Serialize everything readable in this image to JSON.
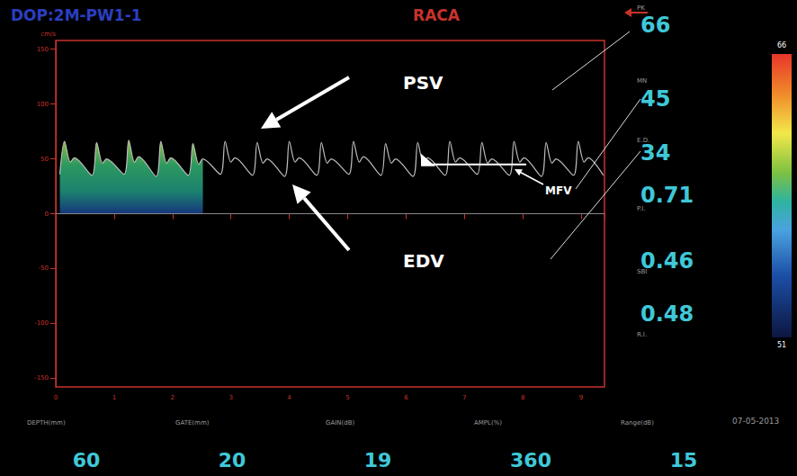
{
  "chart_data": {
    "type": "line",
    "title": "DOP:2M-PW1-1",
    "subtitle": "RACA",
    "y_label": "cm/s",
    "color": "#bdbdbd",
    "grid": false,
    "x": [
      0.07,
      0.15,
      0.25,
      0.32,
      0.62,
      0.7,
      0.8,
      0.87,
      1.17,
      1.25,
      1.35,
      1.42,
      1.72,
      1.8,
      1.9,
      1.97,
      2.27,
      2.35,
      2.45,
      2.52,
      2.82,
      2.9,
      3.0,
      3.07,
      3.37,
      3.45,
      3.55,
      3.62,
      3.92,
      4.0,
      4.1,
      4.17,
      4.47,
      4.55,
      4.65,
      4.72,
      5.02,
      5.1,
      5.2,
      5.27,
      5.57,
      5.65,
      5.75,
      5.82,
      6.12,
      6.2,
      6.3,
      6.37,
      6.67,
      6.75,
      6.85,
      6.92,
      7.22,
      7.3,
      7.4,
      7.47,
      7.77,
      7.85,
      7.95,
      8.02,
      8.32,
      8.4,
      8.5,
      8.57,
      8.87,
      8.95,
      9.05,
      9.12,
      9.38
    ],
    "values": [
      36,
      66,
      47,
      51,
      35,
      65,
      46,
      50,
      36,
      67,
      47,
      52,
      34,
      66,
      46,
      51,
      35,
      64,
      45,
      50,
      36,
      66,
      47,
      51,
      35,
      65,
      46,
      50,
      34,
      66,
      47,
      51,
      35,
      65,
      46,
      50,
      36,
      66,
      47,
      52,
      35,
      64,
      46,
      50,
      34,
      65,
      46,
      51,
      35,
      66,
      47,
      51,
      36,
      65,
      46,
      50,
      35,
      66,
      47,
      51,
      34,
      65,
      46,
      50,
      35,
      66,
      47,
      51,
      35
    ],
    "xlim": [
      0,
      9.4
    ],
    "xticks": [
      0,
      1,
      2,
      3,
      4,
      5,
      6,
      7,
      8,
      9
    ],
    "ylim": [
      -158,
      158
    ],
    "yticks": [
      -150,
      -100,
      -50,
      0,
      50,
      100,
      150
    ],
    "spectrum_xlim": [
      0,
      2.55
    ],
    "annotations": [
      "PSV",
      "EDV",
      "MFV"
    ],
    "measurements": [
      {
        "name": "PK",
        "value": 66
      },
      {
        "name": "MN",
        "value": 45
      },
      {
        "name": "E.D.",
        "value": 34
      },
      {
        "name": "P.I.",
        "value": 0.71
      },
      {
        "name": "SBI",
        "value": 0.46
      },
      {
        "name": "R.I.",
        "value": 0.48
      }
    ],
    "parameters": [
      {
        "name": "DEPTH(mm)",
        "value": 60
      },
      {
        "name": "GATE(mm)",
        "value": 20
      },
      {
        "name": "GAIN(dB)",
        "value": 19
      },
      {
        "name": "AMPL(%)",
        "value": 360
      },
      {
        "name": "Range(dB)",
        "value": 15
      }
    ],
    "date": "07-05-2013",
    "colorbar_ticks": [
      51,
      66
    ]
  }
}
